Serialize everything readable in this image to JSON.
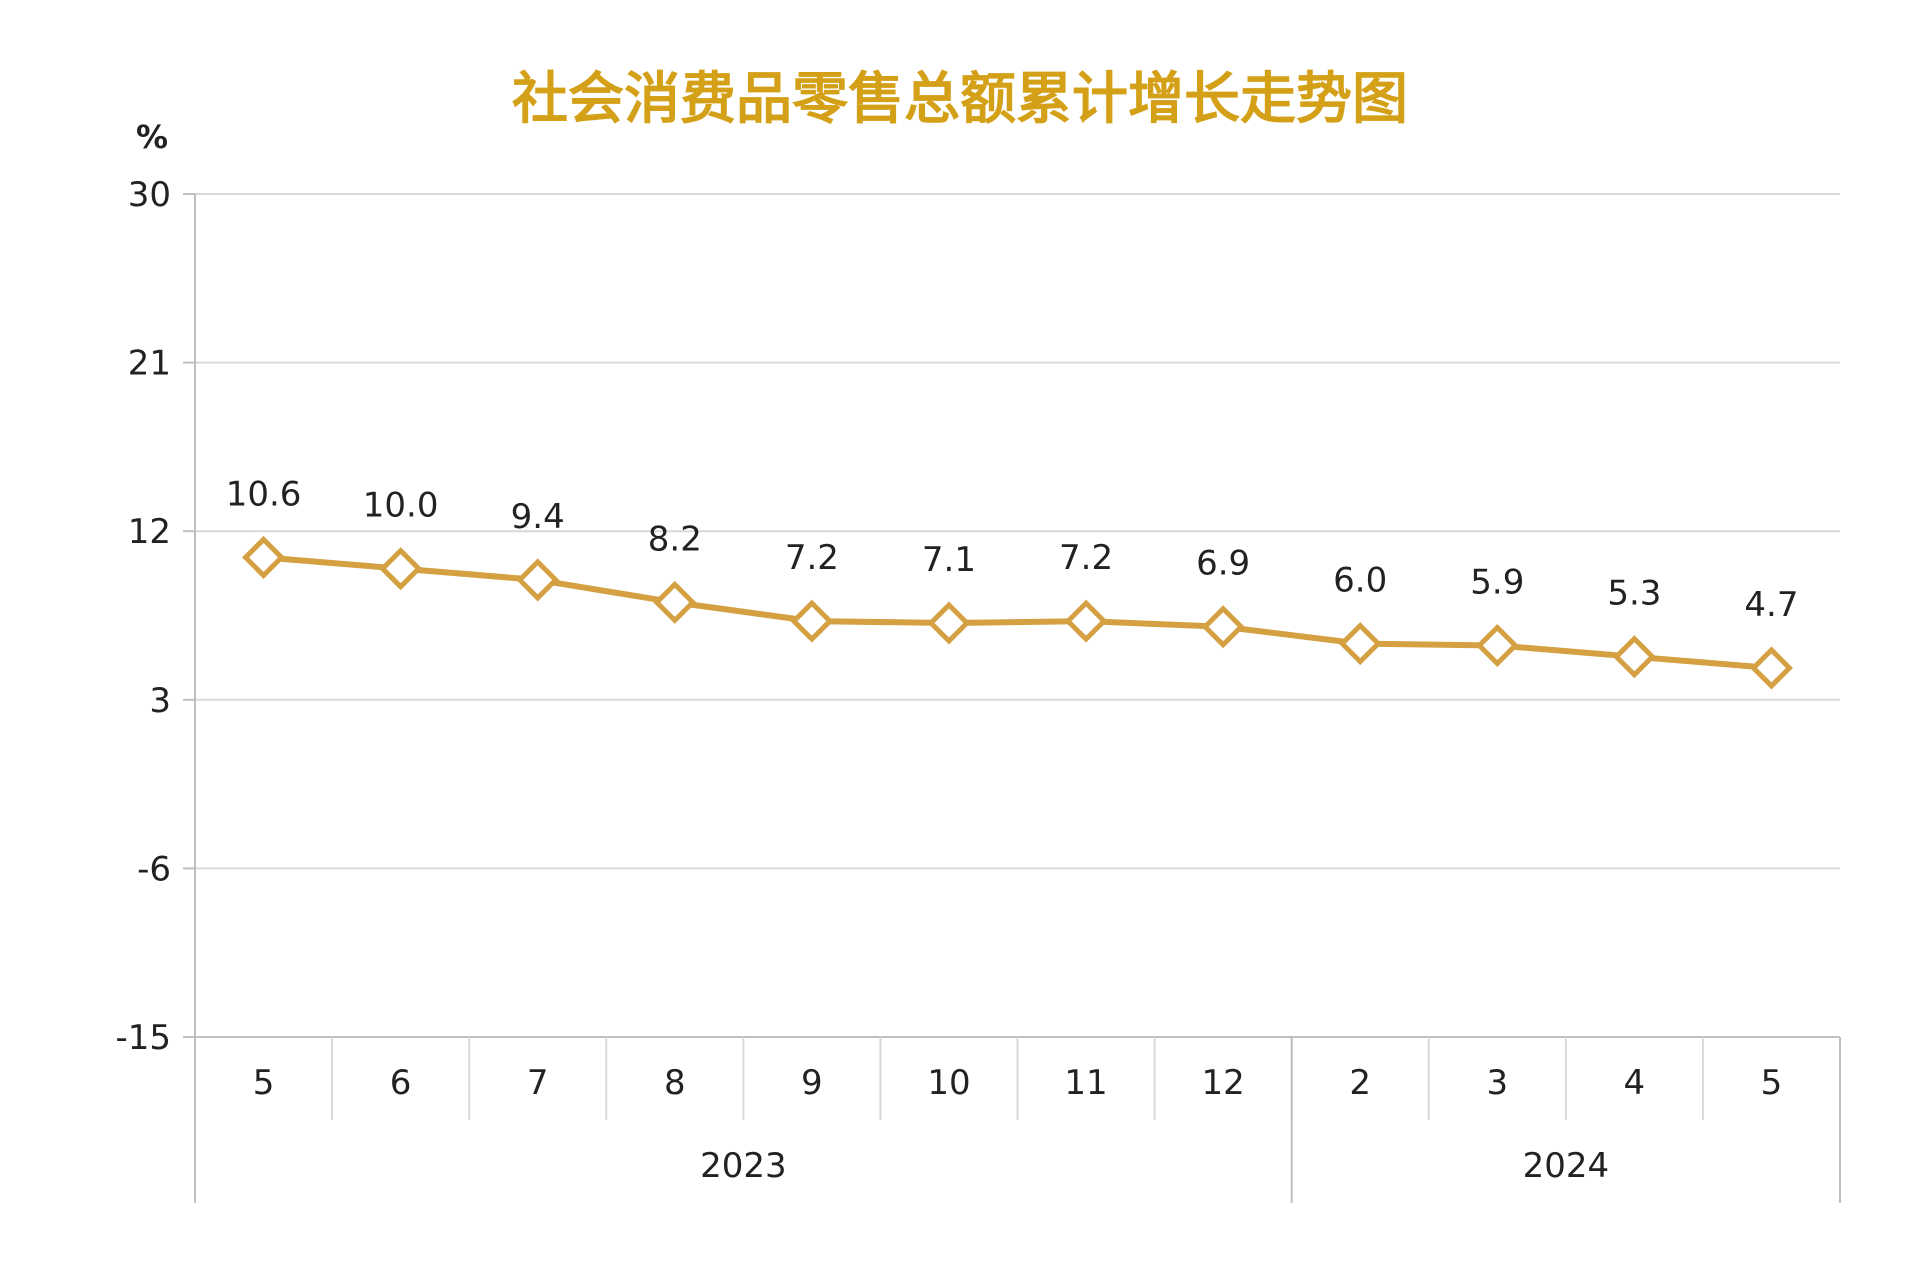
{
  "chart_data": {
    "type": "line",
    "title": "社会消费品零售总额累计增长走势图",
    "ylabel": "%",
    "ylim": [
      -15,
      30
    ],
    "yticks": [
      30,
      21,
      12,
      3,
      -6,
      -15
    ],
    "categories": [
      "5",
      "6",
      "7",
      "8",
      "9",
      "10",
      "11",
      "12",
      "2",
      "3",
      "4",
      "5"
    ],
    "groups": [
      {
        "label": "2023",
        "span": 8
      },
      {
        "label": "2024",
        "span": 4
      }
    ],
    "series": [
      {
        "values": [
          10.6,
          10.0,
          9.4,
          8.2,
          7.2,
          7.1,
          7.2,
          6.9,
          6.0,
          5.9,
          5.3,
          4.7
        ]
      }
    ],
    "data_labels": [
      "10.6",
      "10.0",
      "9.4",
      "8.2",
      "7.2",
      "7.1",
      "7.2",
      "6.9",
      "6.0",
      "5.9",
      "5.3",
      "4.7"
    ],
    "grid": true,
    "legend": "none",
    "colors": {
      "line": "#D4A042",
      "title": "#D4A017",
      "grid": "#D9D9D9",
      "axis": "#BFBFBF"
    }
  }
}
